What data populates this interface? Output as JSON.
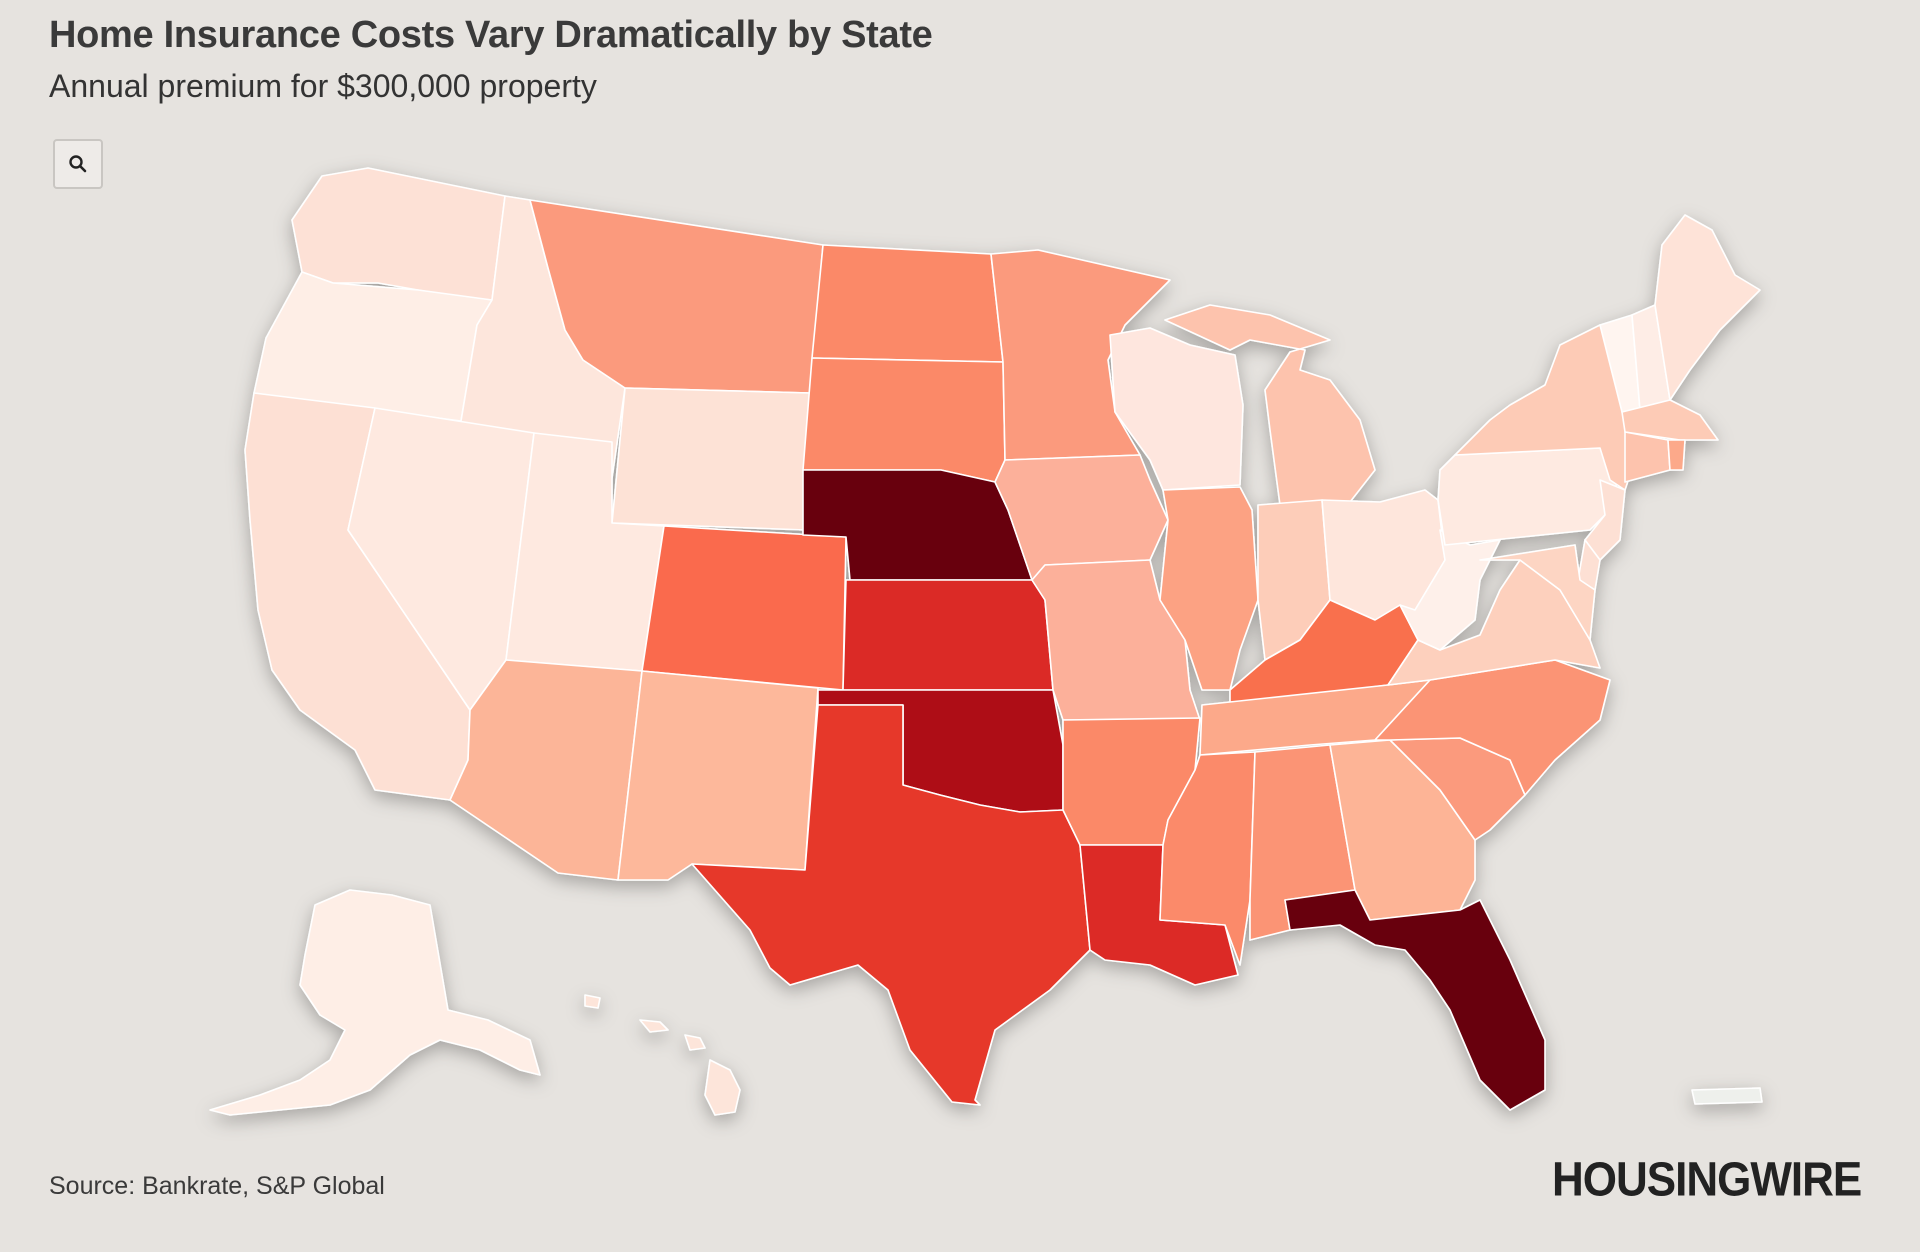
{
  "header": {
    "title": "Home Insurance Costs Vary Dramatically by State",
    "subtitle": "Annual premium for $300,000 property"
  },
  "toolbar": {
    "zoom_icon": "search-icon"
  },
  "footer": {
    "source": "Source: Bankrate, S&P Global",
    "logo": "HOUSINGWIRE"
  },
  "colors": {
    "background": "#e6e3df",
    "scale": [
      "#fff5f0",
      "#fee0d2",
      "#fcbba1",
      "#fc9272",
      "#fb6a4a",
      "#ef3b2c",
      "#cb181d",
      "#a50f15",
      "#67000d"
    ]
  },
  "map_data": {
    "type": "choropleth",
    "region": "United States",
    "states": [
      {
        "id": "WA",
        "color": "#fde1d6"
      },
      {
        "id": "OR",
        "color": "#feeee6"
      },
      {
        "id": "CA",
        "color": "#fde0d4"
      },
      {
        "id": "ID",
        "color": "#fde6dc"
      },
      {
        "id": "NV",
        "color": "#fee9e0"
      },
      {
        "id": "MT",
        "color": "#fb9a7d"
      },
      {
        "id": "WY",
        "color": "#fde2d6"
      },
      {
        "id": "UT",
        "color": "#fee9e0"
      },
      {
        "id": "AZ",
        "color": "#fcb598"
      },
      {
        "id": "CO",
        "color": "#fa6b4e"
      },
      {
        "id": "NM",
        "color": "#fdb89b"
      },
      {
        "id": "ND",
        "color": "#fb8968"
      },
      {
        "id": "SD",
        "color": "#fb8968"
      },
      {
        "id": "NE",
        "color": "#67000d"
      },
      {
        "id": "KS",
        "color": "#db2a25"
      },
      {
        "id": "OK",
        "color": "#ae1117"
      },
      {
        "id": "TX",
        "color": "#e6382b"
      },
      {
        "id": "MN",
        "color": "#fb9a7d"
      },
      {
        "id": "IA",
        "color": "#fcb09a"
      },
      {
        "id": "MO",
        "color": "#fcb09a"
      },
      {
        "id": "AR",
        "color": "#fb8968"
      },
      {
        "id": "LA",
        "color": "#dc2a25"
      },
      {
        "id": "WI",
        "color": "#fee6de"
      },
      {
        "id": "IL",
        "color": "#fca283"
      },
      {
        "id": "MI",
        "color": "#fdc3ad"
      },
      {
        "id": "IN",
        "color": "#fdcdb9"
      },
      {
        "id": "OH",
        "color": "#fee6dc"
      },
      {
        "id": "KY",
        "color": "#f9704e"
      },
      {
        "id": "TN",
        "color": "#fca98a"
      },
      {
        "id": "MS",
        "color": "#fb8a6a"
      },
      {
        "id": "AL",
        "color": "#fb9474"
      },
      {
        "id": "GA",
        "color": "#fdb496"
      },
      {
        "id": "FL",
        "color": "#67000d"
      },
      {
        "id": "SC",
        "color": "#fb9a7d"
      },
      {
        "id": "NC",
        "color": "#fb9474"
      },
      {
        "id": "VA",
        "color": "#fdd0bd"
      },
      {
        "id": "WV",
        "color": "#fef0ea"
      },
      {
        "id": "PA",
        "color": "#feeae1"
      },
      {
        "id": "NY",
        "color": "#fdcbb6"
      },
      {
        "id": "VT",
        "color": "#fff5f0"
      },
      {
        "id": "NH",
        "color": "#feede6"
      },
      {
        "id": "ME",
        "color": "#fee3d8"
      },
      {
        "id": "MA",
        "color": "#fdcbb6"
      },
      {
        "id": "CT",
        "color": "#fdc3ad"
      },
      {
        "id": "RI",
        "color": "#fca98a"
      },
      {
        "id": "NJ",
        "color": "#fde0d4"
      },
      {
        "id": "DE",
        "color": "#fde0d4"
      },
      {
        "id": "MD",
        "color": "#fdd5c3"
      },
      {
        "id": "AK",
        "color": "#feeee6"
      },
      {
        "id": "HI",
        "color": "#fde5da"
      },
      {
        "id": "PR",
        "color": "#eef0ec"
      }
    ]
  }
}
